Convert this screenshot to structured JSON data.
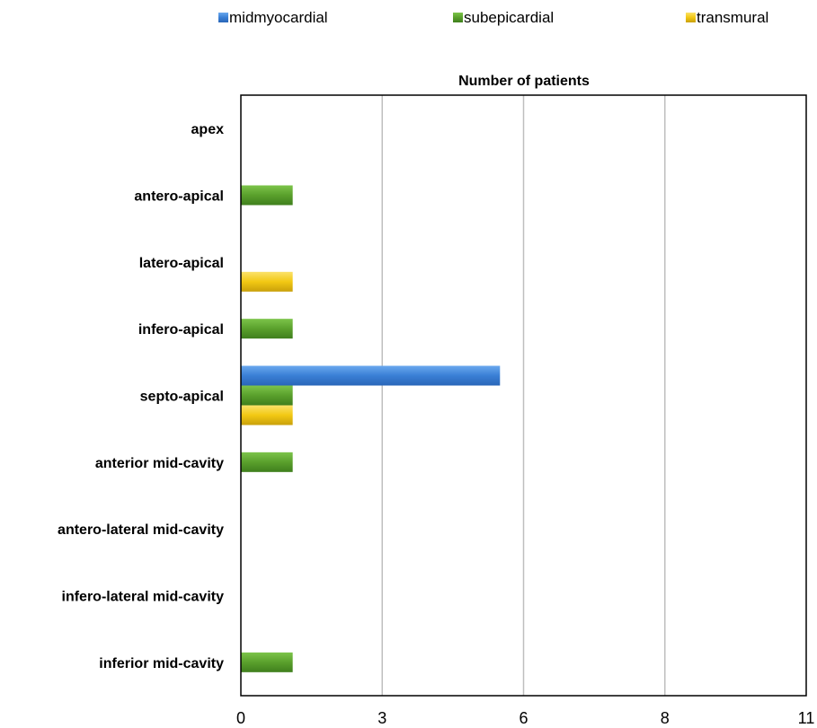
{
  "chart_data": {
    "type": "bar",
    "orientation": "horizontal",
    "title": "Number of patients",
    "categories": [
      "apex",
      "antero-apical",
      "latero-apical",
      "infero-apical",
      "septo-apical",
      "anterior mid-cavity",
      "antero-lateral mid-cavity",
      "infero-lateral mid-cavity",
      "inferior mid-cavity"
    ],
    "series": [
      {
        "name": "midmyocardial",
        "color": "#3a7fd5",
        "values": [
          0,
          0,
          0,
          0,
          5.5,
          0,
          0,
          0,
          0
        ]
      },
      {
        "name": "subepicardial",
        "color": "#5aa02c",
        "values": [
          0,
          1.1,
          0,
          1.1,
          1.1,
          1.1,
          0,
          0,
          1.1
        ]
      },
      {
        "name": "transmural",
        "color": "#f2c813",
        "values": [
          0,
          0,
          1.1,
          0,
          1.1,
          0,
          0,
          0,
          0
        ]
      }
    ],
    "xticks": [
      0,
      3,
      6,
      8,
      11
    ],
    "xlim": [
      0,
      11
    ],
    "grid": true,
    "legend": "top"
  }
}
